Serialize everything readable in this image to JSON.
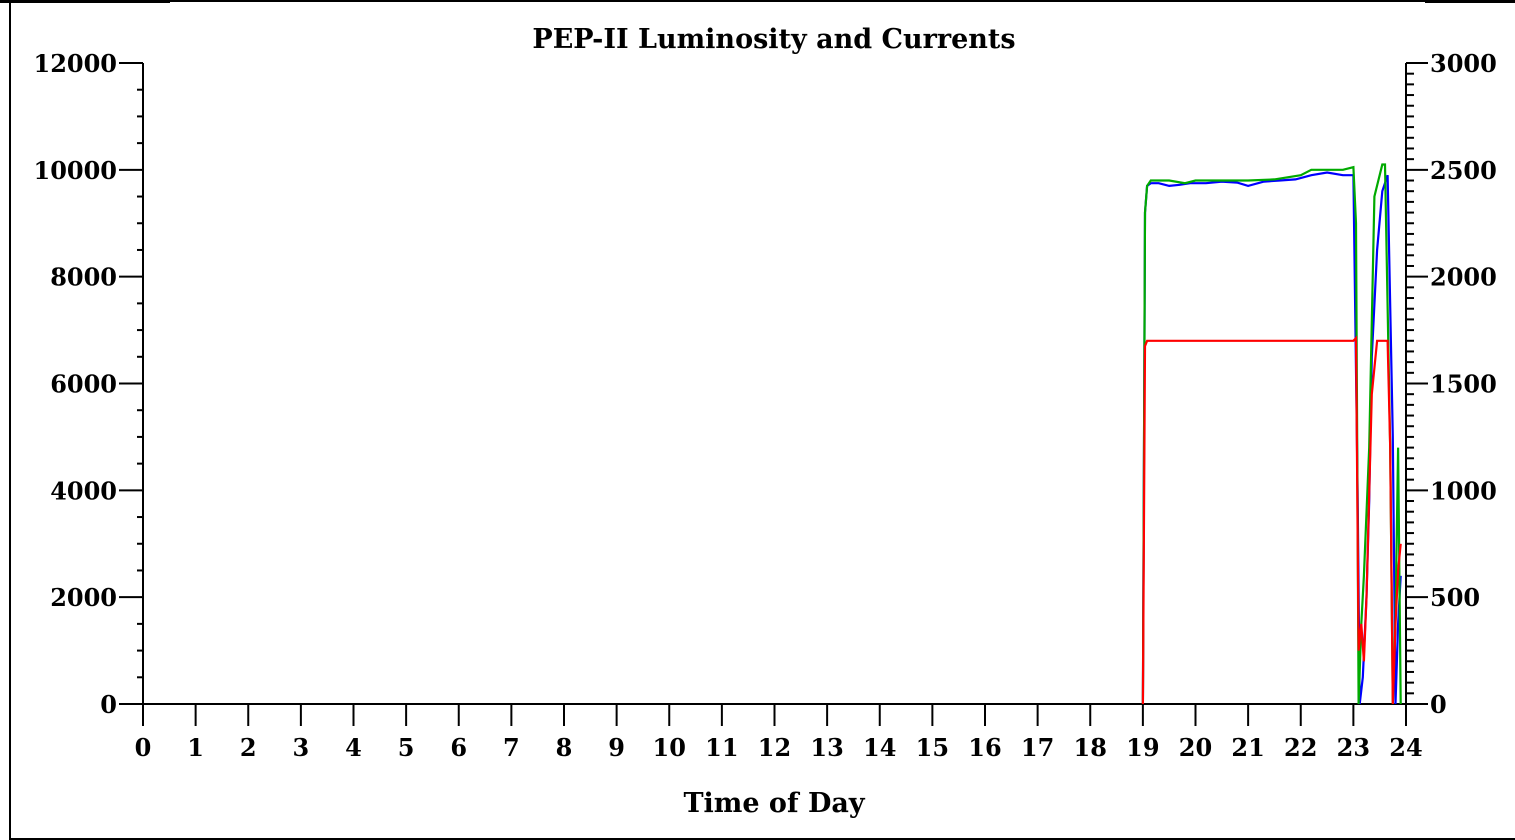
{
  "chart_data": {
    "type": "line",
    "title": "PEP-II Luminosity and Currents",
    "xlabel": "Time of Day",
    "ylabel": "",
    "y2label": "",
    "xlim": [
      0,
      24
    ],
    "ylim": [
      0,
      12000
    ],
    "y2lim": [
      0,
      3000
    ],
    "x_ticks": [
      "0",
      "1",
      "2",
      "3",
      "4",
      "5",
      "6",
      "7",
      "8",
      "9",
      "10",
      "11",
      "12",
      "13",
      "14",
      "15",
      "16",
      "17",
      "18",
      "19",
      "20",
      "21",
      "22",
      "23",
      "24"
    ],
    "y_ticks": [
      "0",
      "2000",
      "4000",
      "6000",
      "8000",
      "10000",
      "12000"
    ],
    "y2_ticks": [
      "0",
      "500",
      "1000",
      "1500",
      "2000",
      "2500",
      "3000"
    ],
    "grid": false,
    "series": [
      {
        "color": "#0000ff",
        "x": [
          19.0,
          19.04,
          19.08,
          19.15,
          19.3,
          19.5,
          19.7,
          19.9,
          20.2,
          20.5,
          20.8,
          21.0,
          21.3,
          21.6,
          21.9,
          22.2,
          22.5,
          22.8,
          23.0,
          23.08,
          23.12,
          23.18,
          23.25,
          23.3,
          23.35,
          23.45,
          23.55,
          23.65,
          23.75,
          23.8,
          23.85,
          23.9
        ],
        "values": [
          0,
          9200,
          9700,
          9750,
          9750,
          9700,
          9720,
          9750,
          9750,
          9780,
          9760,
          9700,
          9780,
          9800,
          9820,
          9900,
          9950,
          9900,
          9900,
          4000,
          0,
          500,
          2000,
          3800,
          6500,
          8500,
          9600,
          9900,
          5000,
          0,
          1500,
          2400
        ]
      },
      {
        "color": "#00aa00",
        "x": [
          19.0,
          19.04,
          19.08,
          19.15,
          19.5,
          19.8,
          20.0,
          20.5,
          21.0,
          21.5,
          22.0,
          22.2,
          22.5,
          22.8,
          23.0,
          23.05,
          23.1,
          23.15,
          23.2,
          23.3,
          23.4,
          23.55,
          23.6,
          23.7,
          23.75,
          23.8,
          23.85,
          23.9
        ],
        "values": [
          0,
          9200,
          9700,
          9800,
          9800,
          9750,
          9800,
          9800,
          9800,
          9820,
          9900,
          10000,
          10000,
          10000,
          10050,
          9000,
          0,
          1500,
          2400,
          4800,
          9500,
          10100,
          10100,
          4800,
          0,
          1600,
          4800,
          0
        ]
      },
      {
        "color": "#ff0000",
        "x": [
          19.0,
          19.04,
          19.08,
          19.5,
          20.0,
          20.5,
          21.0,
          21.5,
          22.0,
          22.5,
          23.0,
          23.05,
          23.1,
          23.15,
          23.2,
          23.25,
          23.35,
          23.45,
          23.55,
          23.65,
          23.7,
          23.75,
          23.8,
          23.85,
          23.9
        ],
        "values": [
          0,
          6700,
          6800,
          6800,
          6800,
          6800,
          6800,
          6800,
          6800,
          6800,
          6800,
          6850,
          1000,
          1500,
          800,
          2000,
          5800,
          6800,
          6800,
          6800,
          4800,
          0,
          1500,
          2500,
          3000
        ]
      }
    ]
  }
}
